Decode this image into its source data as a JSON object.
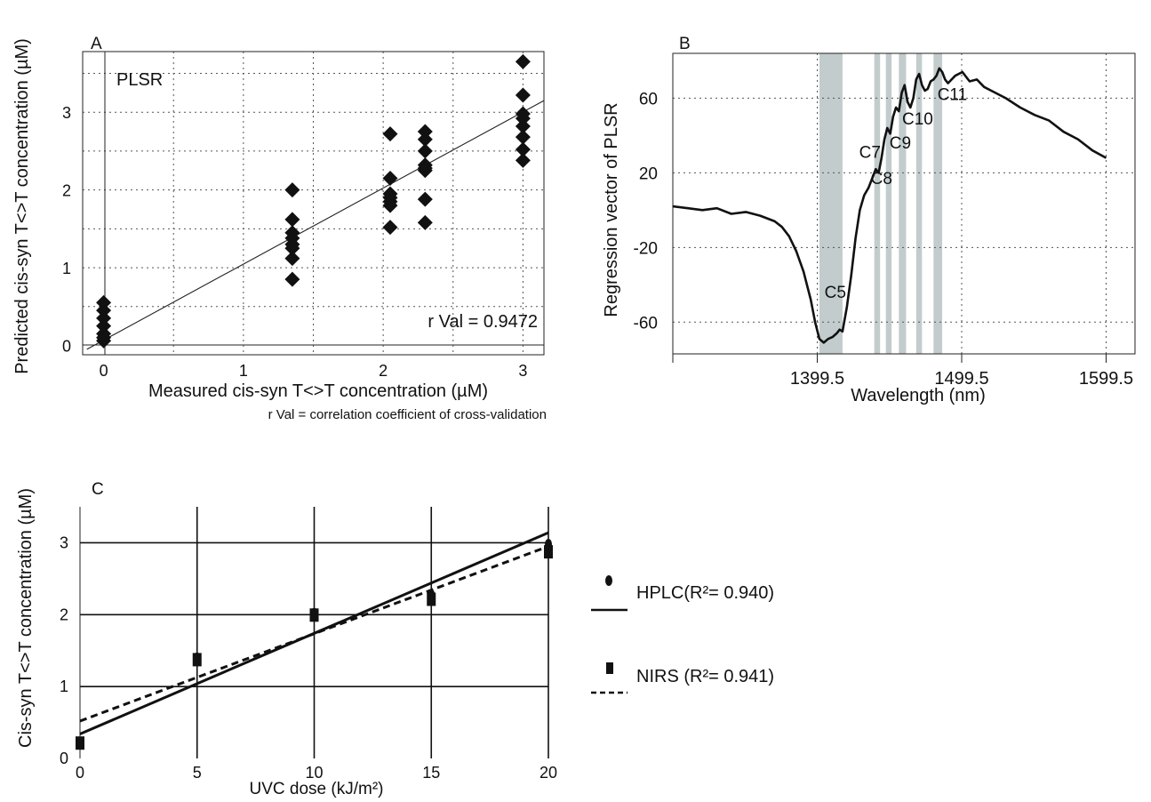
{
  "chart_data": [
    {
      "id": "A",
      "type": "scatter",
      "panel_label": "A",
      "annotation": "PLSR",
      "stat_text": "r Val = 0.9472",
      "footnote": "r Val = correlation coefficient of cross-validation",
      "xlabel": "Measured cis-syn T<>T concentration (µM)",
      "ylabel": "Predicted cis-syn T<>T concentration (µM)",
      "xlim": [
        -0.15,
        3.15
      ],
      "ylim": [
        -0.12,
        3.78
      ],
      "x_ticks": [
        "0",
        "1",
        "2",
        "3"
      ],
      "y_ticks": [
        "0",
        "1",
        "2",
        "3"
      ],
      "grid": true,
      "points": [
        [
          0,
          0.55
        ],
        [
          0,
          0.45
        ],
        [
          0,
          0.35
        ],
        [
          0,
          0.25
        ],
        [
          0,
          0.15
        ],
        [
          0,
          0.1
        ],
        [
          0,
          0.06
        ],
        [
          1.35,
          2.0
        ],
        [
          1.35,
          1.62
        ],
        [
          1.35,
          1.45
        ],
        [
          1.35,
          1.38
        ],
        [
          1.35,
          1.3
        ],
        [
          1.35,
          1.25
        ],
        [
          1.35,
          1.12
        ],
        [
          1.35,
          0.85
        ],
        [
          2.05,
          2.72
        ],
        [
          2.05,
          2.15
        ],
        [
          2.05,
          1.95
        ],
        [
          2.05,
          1.9
        ],
        [
          2.05,
          1.85
        ],
        [
          2.05,
          1.8
        ],
        [
          2.05,
          1.52
        ],
        [
          2.3,
          2.75
        ],
        [
          2.3,
          2.65
        ],
        [
          2.3,
          2.5
        ],
        [
          2.3,
          2.32
        ],
        [
          2.3,
          2.28
        ],
        [
          2.3,
          2.25
        ],
        [
          2.3,
          1.88
        ],
        [
          2.3,
          1.58
        ],
        [
          3.0,
          3.65
        ],
        [
          3.0,
          3.22
        ],
        [
          3.0,
          2.98
        ],
        [
          3.0,
          2.92
        ],
        [
          3.0,
          2.82
        ],
        [
          3.0,
          2.68
        ],
        [
          3.0,
          2.52
        ],
        [
          3.0,
          2.38
        ]
      ],
      "fit_line": {
        "x": [
          -0.12,
          3.15
        ],
        "y": [
          -0.05,
          3.15
        ]
      }
    },
    {
      "id": "B",
      "type": "line",
      "panel_label": "B",
      "xlabel": "Wavelength (nm)",
      "ylabel": "Regression vector of PLSR",
      "xlim": [
        1299.5,
        1619.5
      ],
      "ylim": [
        -77,
        84
      ],
      "x_ticks": [
        1399.5,
        1499.5,
        1599.5
      ],
      "x_tick_labels": [
        "1399.5",
        "1499.5",
        "1599.5"
      ],
      "y_ticks": [
        -60,
        -20,
        20,
        60
      ],
      "y_tick_labels": [
        "-60",
        "-20",
        "20",
        "60"
      ],
      "grid": true,
      "bands": [
        {
          "label": "C5",
          "x0": 1401,
          "x1": 1417
        },
        {
          "label": "C7",
          "x0": 1439,
          "x1": 1443
        },
        {
          "label": "C8",
          "x0": 1447,
          "x1": 1451
        },
        {
          "label": "C9",
          "x0": 1456,
          "x1": 1461
        },
        {
          "label": "C10",
          "x0": 1468,
          "x1": 1472
        },
        {
          "label": "C11",
          "x0": 1480,
          "x1": 1486
        }
      ],
      "band_labels": [
        {
          "text": "C5",
          "x": 1412,
          "y": -47
        },
        {
          "text": "C7",
          "x": 1436,
          "y": 28
        },
        {
          "text": "C8",
          "x": 1444,
          "y": 14
        },
        {
          "text": "C9",
          "x": 1457,
          "y": 33
        },
        {
          "text": "C10",
          "x": 1469,
          "y": 46
        },
        {
          "text": "C11",
          "x": 1493,
          "y": 59
        }
      ],
      "series": [
        {
          "x": [
            1299.5,
            1310,
            1320,
            1330,
            1340,
            1350,
            1360,
            1370,
            1375,
            1380,
            1385,
            1390,
            1395,
            1398,
            1401,
            1404,
            1407,
            1410,
            1413,
            1415,
            1417,
            1420,
            1423,
            1426,
            1429,
            1432,
            1435,
            1438,
            1440,
            1442,
            1444,
            1446,
            1448,
            1450,
            1452,
            1454,
            1456,
            1458,
            1460,
            1462,
            1464,
            1466,
            1468,
            1470,
            1472,
            1474,
            1476,
            1478,
            1480,
            1482,
            1484,
            1486,
            1488,
            1490,
            1495,
            1500,
            1505,
            1510,
            1515,
            1520,
            1530,
            1540,
            1550,
            1560,
            1570,
            1580,
            1590,
            1599.5
          ],
          "y": [
            2,
            1,
            0,
            1,
            -2,
            -1,
            -3,
            -6,
            -9,
            -14,
            -22,
            -33,
            -48,
            -60,
            -69,
            -71,
            -69,
            -68,
            -66,
            -64,
            -65,
            -52,
            -35,
            -15,
            0,
            8,
            12,
            18,
            22,
            20,
            28,
            38,
            44,
            41,
            50,
            55,
            53,
            63,
            67,
            58,
            55,
            60,
            70,
            73,
            67,
            64,
            65,
            69,
            70,
            72,
            76,
            74,
            70,
            68,
            72,
            74,
            69,
            70,
            66,
            64,
            60,
            55,
            51,
            48,
            42,
            38,
            32,
            28
          ]
        }
      ]
    },
    {
      "id": "C",
      "type": "scatter",
      "panel_label": "C",
      "xlabel": "UVC dose (kJ/m²)",
      "ylabel": "Cis-syn T<>T concentration (µM)",
      "xlim": [
        0,
        20
      ],
      "ylim": [
        0,
        3.5
      ],
      "x_ticks": [
        "0",
        "5",
        "10",
        "15",
        "20"
      ],
      "y_ticks": [
        "0",
        "1",
        "2",
        "3"
      ],
      "grid": true,
      "legend_placement": "right",
      "series": [
        {
          "name": "HPLC(R²= 0.940)",
          "marker": "ellipse",
          "line": "solid",
          "x": [
            0,
            5,
            10,
            15,
            20
          ],
          "y": [
            0.22,
            1.4,
            2.02,
            2.28,
            2.98
          ],
          "fit": {
            "x": [
              0,
              20
            ],
            "y": [
              0.34,
              3.14
            ]
          }
        },
        {
          "name": "NIRS (R²= 0.941)",
          "marker": "square",
          "line": "dashed",
          "x": [
            0,
            5,
            10,
            15,
            20
          ],
          "y": [
            0.22,
            1.38,
            2.0,
            2.22,
            2.88
          ],
          "fit": {
            "x": [
              0,
              20
            ],
            "y": [
              0.52,
              2.95
            ]
          }
        }
      ]
    }
  ]
}
